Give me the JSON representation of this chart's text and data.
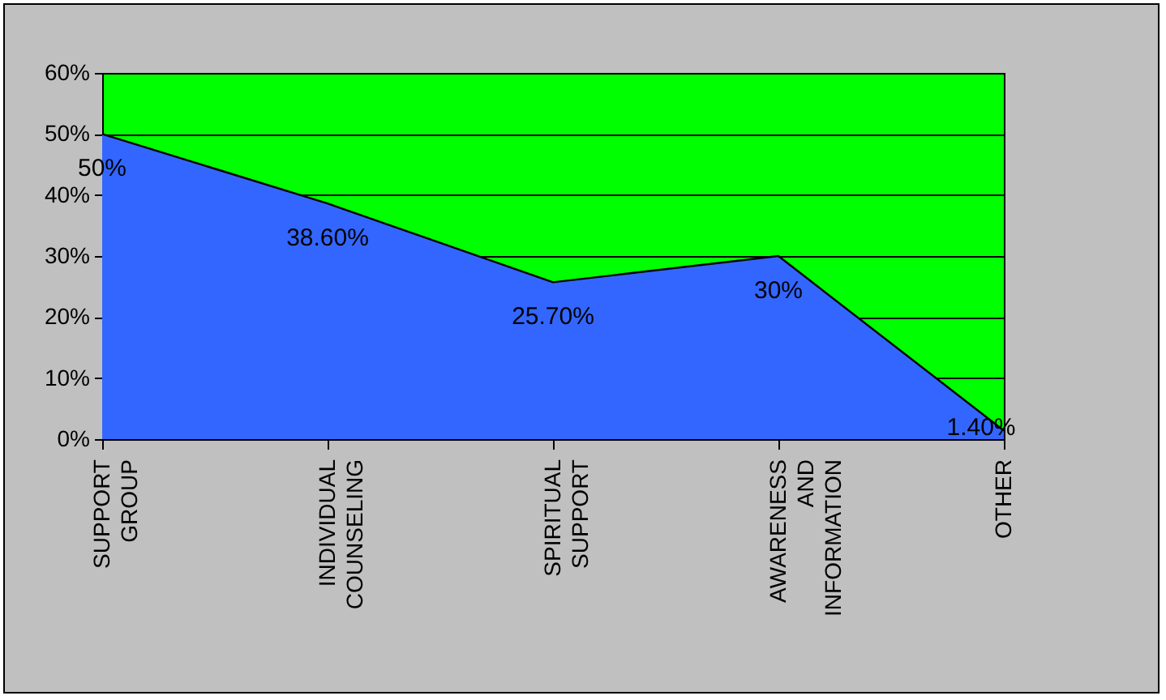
{
  "chart_data": {
    "type": "area",
    "categories": [
      "SUPPORT GROUP",
      "INDIVIDUAL COUNSELING",
      "SPIRITUAL SUPPORT",
      "AWARENESS AND INFORMATION",
      "OTHER"
    ],
    "series": [
      {
        "color": "#3366ff",
        "values": [
          50,
          38.6,
          25.7,
          30,
          1.4
        ],
        "value_labels": [
          "50%",
          "38.60%",
          "25.70%",
          "30%",
          "1.40%"
        ]
      }
    ],
    "ylim": [
      0,
      60
    ],
    "yticks": [
      {
        "value": 0,
        "label": "0%"
      },
      {
        "value": 10,
        "label": "10%"
      },
      {
        "value": 20,
        "label": "20%"
      },
      {
        "value": 30,
        "label": "30%"
      },
      {
        "value": 40,
        "label": "40%"
      },
      {
        "value": 50,
        "label": "50%"
      },
      {
        "value": 60,
        "label": "60%"
      }
    ],
    "grid": "y"
  }
}
